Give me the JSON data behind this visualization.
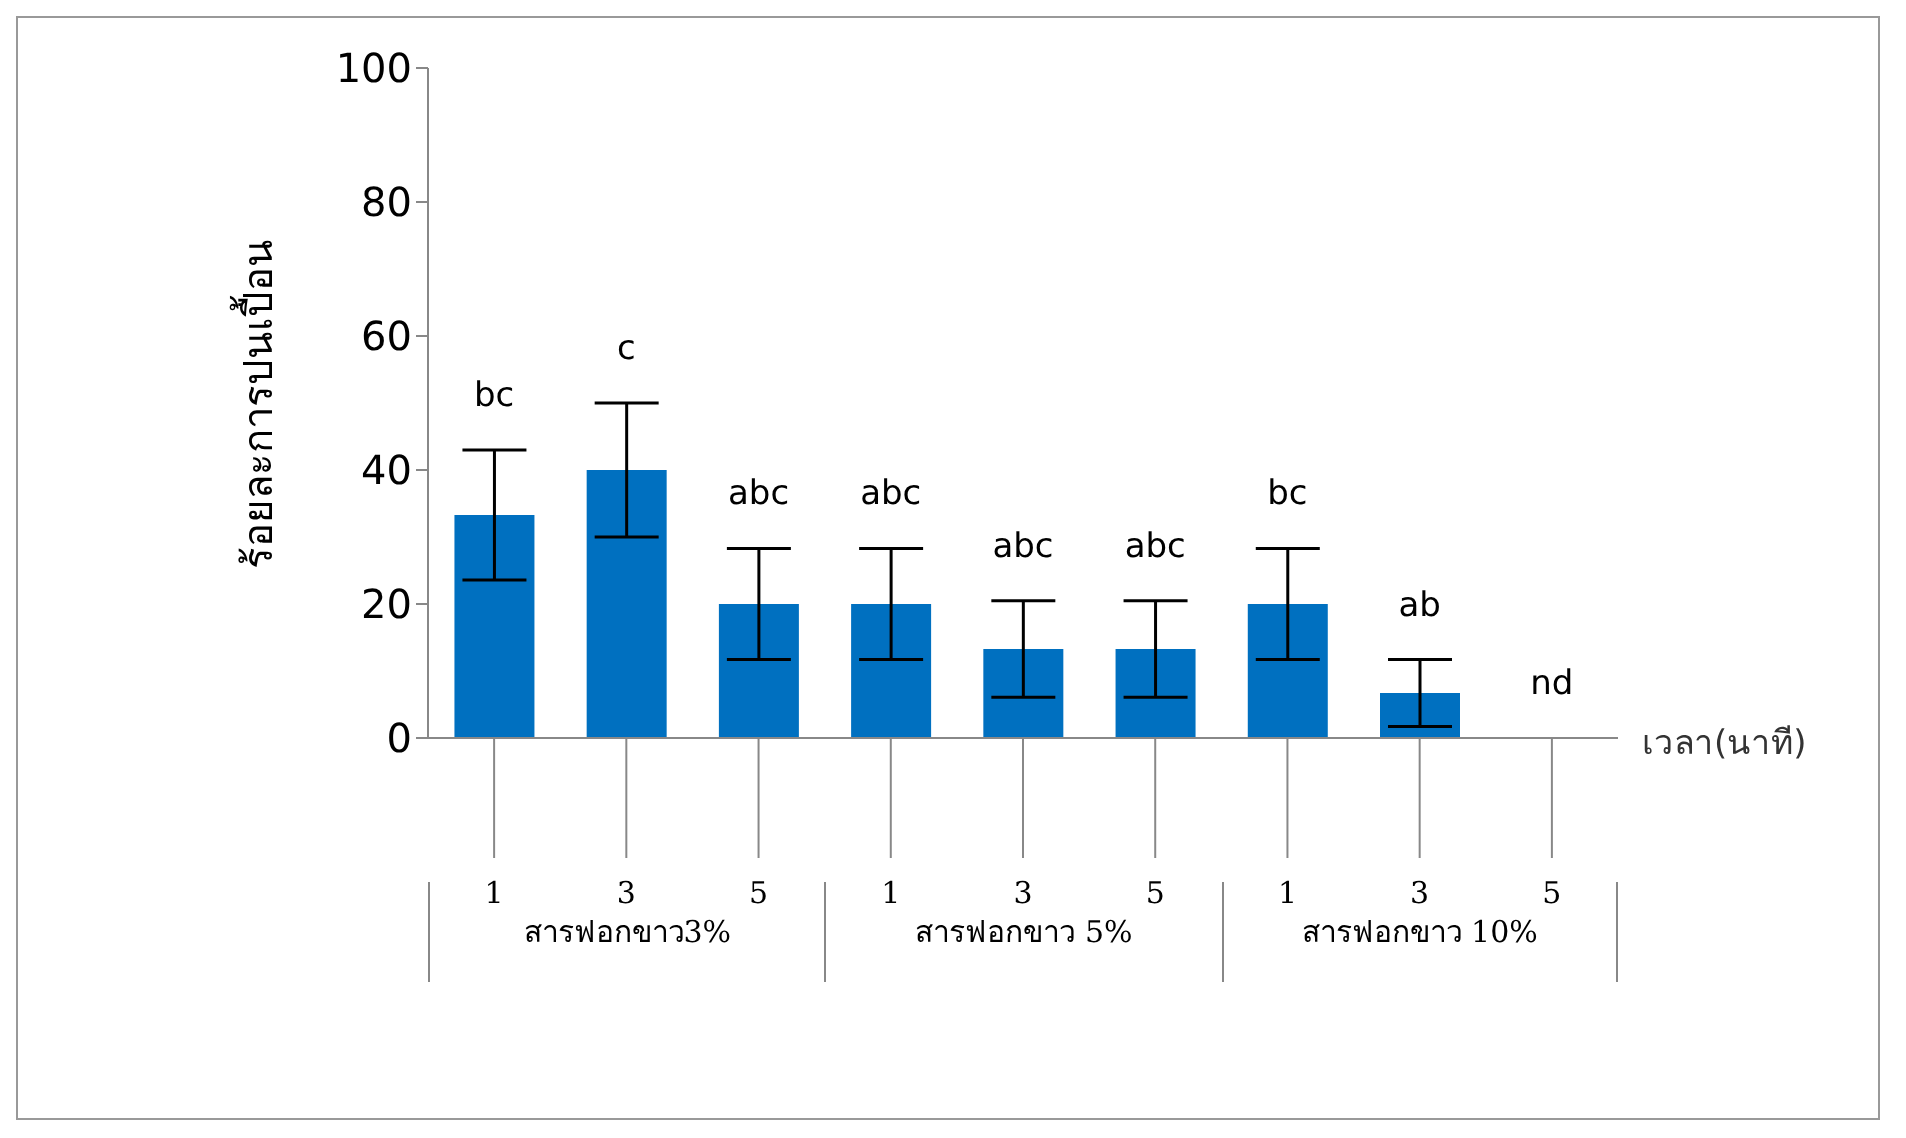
{
  "chart_data": {
    "type": "bar",
    "ylabel": "ร้อยละการปนเปื้อน",
    "xlabel": "เวลา(นาที)",
    "categories": [
      "1",
      "3",
      "5",
      "1",
      "3",
      "5",
      "1",
      "3",
      "5"
    ],
    "values": [
      33.3,
      40,
      20,
      20,
      13.3,
      13.3,
      20,
      6.7,
      0
    ],
    "errors": [
      9.7,
      10,
      8.3,
      8.3,
      7.2,
      7.2,
      8.3,
      5,
      null
    ],
    "value_labels": [
      "bc",
      "c",
      "abc",
      "abc",
      "abc",
      "abc",
      "bc",
      "ab",
      "nd"
    ],
    "color": "#0070c0",
    "ylim": [
      0,
      100
    ],
    "yticks": [
      0,
      20,
      40,
      60,
      80,
      100
    ],
    "annotations": [
      "สารฟอกขาว3%",
      "สารฟอกขาว 5%",
      "สารฟอกขาว 10%"
    ]
  }
}
